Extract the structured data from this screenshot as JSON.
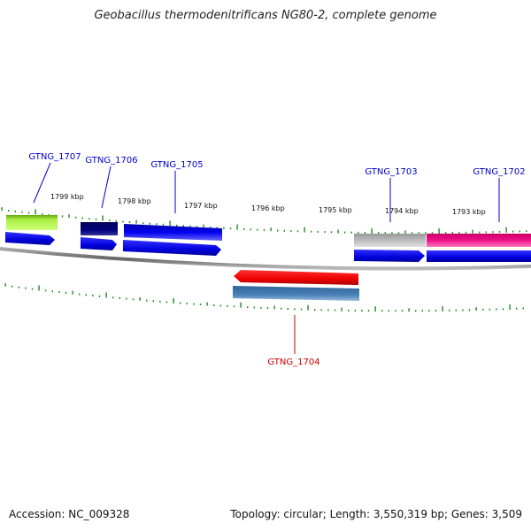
{
  "title": "Geobacillus thermodenitrificans NG80-2, complete genome",
  "footer": {
    "accession": "Accession: NC_009328",
    "summary": "Topology: circular; Length: 3,550,319 bp; Genes: 3,509"
  },
  "ruler": [
    "1799 kbp",
    "1798 kbp",
    "1797 kbp",
    "1796 kbp",
    "1795 kbp",
    "1794 kbp",
    "1793 kbp"
  ],
  "genes": [
    {
      "id": "GTNG_1707",
      "strand": "forward",
      "color": "#99dd33",
      "label_color": "#0000cc"
    },
    {
      "id": "GTNG_1706",
      "strand": "forward",
      "color": "#000077",
      "label_color": "#0000cc"
    },
    {
      "id": "GTNG_1705",
      "strand": "forward",
      "color": "#0000ee",
      "label_color": "#0000cc"
    },
    {
      "id": "GTNG_1704",
      "strand": "reverse",
      "color": "#4477aa",
      "label_color": "#cc0000"
    },
    {
      "id": "GTNG_1703",
      "strand": "forward",
      "color": "#b0b0b0",
      "label_color": "#0000cc"
    },
    {
      "id": "GTNG_1702",
      "strand": "forward",
      "color": "#ee1188",
      "label_color": "#0000cc"
    }
  ],
  "colors": {
    "cds_forward": "#0000ee",
    "cds_reverse": "#ee0000",
    "tick": "#228822",
    "backbone": "#777777"
  }
}
